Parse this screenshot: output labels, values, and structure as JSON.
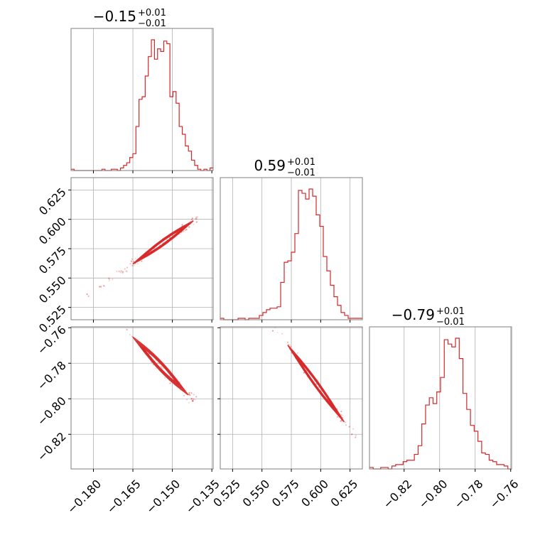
{
  "chart_data": {
    "type": "corner",
    "color": "#d62728",
    "grid": true,
    "parameters": [
      {
        "title": {
          "main": "−0.15",
          "plus": "+0.01",
          "minus": "−0.01"
        },
        "lim": [
          -0.1885,
          -0.1345
        ],
        "ticks": [
          -0.18,
          -0.165,
          -0.15,
          -0.135
        ],
        "tick_labels": [
          "−0.180",
          "−0.165",
          "−0.150",
          "−0.135"
        ],
        "hist_edges_start": -0.1885,
        "hist_edges_end": -0.1345,
        "hist_counts": [
          1,
          0,
          0,
          0,
          0,
          0,
          0,
          0,
          0,
          0,
          1,
          0,
          0,
          1,
          1,
          0,
          2,
          4,
          6,
          10,
          13,
          34,
          55,
          57,
          73,
          88,
          101,
          86,
          94,
          92,
          100,
          98,
          57,
          61,
          52,
          34,
          28,
          19,
          15,
          8,
          4,
          1,
          0,
          1,
          0,
          2
        ]
      },
      {
        "title": {
          "main": "0.59",
          "plus": "+0.01",
          "minus": "−0.01"
        },
        "lim": [
          0.5145,
          0.6355
        ],
        "ticks": [
          0.525,
          0.55,
          0.575,
          0.6,
          0.625
        ],
        "tick_labels": [
          "0.525",
          "0.550",
          "0.575",
          "0.600",
          "0.625"
        ],
        "hist_edges_start": 0.5145,
        "hist_edges_end": 0.6355,
        "hist_counts": [
          1,
          0,
          0,
          0,
          0,
          1,
          1,
          0,
          1,
          1,
          1,
          3,
          5,
          7,
          8,
          8,
          9,
          26,
          40,
          41,
          47,
          60,
          90,
          88,
          84,
          91,
          86,
          73,
          65,
          44,
          34,
          24,
          16,
          10,
          5,
          3,
          1,
          1,
          1,
          1
        ]
      },
      {
        "title": {
          "main": "−0.79",
          "plus": "+0.01",
          "minus": "−0.01"
        },
        "lim": [
          -0.8395,
          -0.7595
        ],
        "ticks": [
          -0.82,
          -0.8,
          -0.78,
          -0.76
        ],
        "tick_labels": [
          "−0.82",
          "−0.80",
          "−0.78",
          "−0.76"
        ],
        "hist_edges_start": -0.8395,
        "hist_edges_end": -0.7595,
        "hist_counts": [
          1,
          0,
          0,
          1,
          1,
          0,
          2,
          3,
          3,
          5,
          6,
          6,
          10,
          16,
          31,
          44,
          49,
          45,
          53,
          63,
          89,
          86,
          84,
          90,
          76,
          52,
          41,
          30,
          26,
          19,
          11,
          10,
          6,
          5,
          3,
          3,
          2,
          0
        ]
      }
    ],
    "pairs": [
      {
        "x": 0,
        "y": 1,
        "slope": 1.6,
        "intercept": 0.826,
        "width": 0.0018,
        "scatter_start": -0.184,
        "scatter_end": -0.14,
        "dense_start": -0.165,
        "dense_end": -0.142
      },
      {
        "x": 0,
        "y": 2,
        "slope": -1.55,
        "intercept": -1.021,
        "width": 0.0018,
        "scatter_start": -0.184,
        "scatter_end": -0.14,
        "dense_start": -0.165,
        "dense_end": -0.144
      },
      {
        "x": 1,
        "y": 2,
        "slope": -0.9,
        "intercept": -0.255,
        "width": 0.0015,
        "scatter_start": 0.53,
        "scatter_end": 0.63,
        "dense_start": 0.572,
        "dense_end": 0.62
      }
    ]
  }
}
